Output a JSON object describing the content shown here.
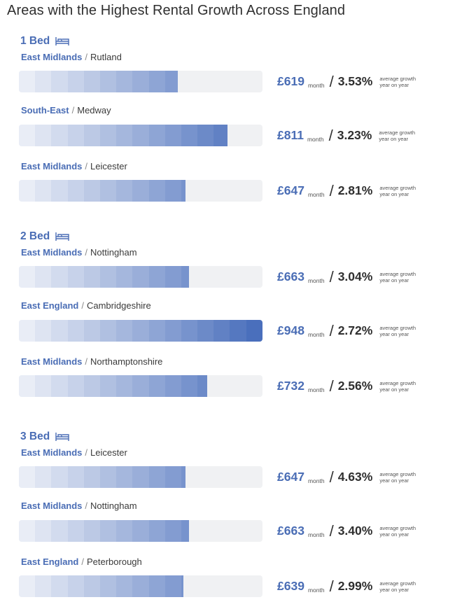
{
  "title": "Areas with the Highest Rental Growth Across England",
  "price_unit": "month",
  "growth_note_line1": "average growth",
  "growth_note_line2": "year on year",
  "colors": {
    "accent": "#4a6db5",
    "track": "#f0f1f3",
    "segment_light": "#e9edf6",
    "segment_dark": "#4a6fbc"
  },
  "chart_data": {
    "type": "bar",
    "title": "Areas with the Highest Rental Growth Across England",
    "xlabel": "",
    "ylabel": "",
    "unit_price": "£ per month",
    "unit_growth": "average growth year on year (%)",
    "groups": [
      {
        "label": "1 Bed",
        "icon": "bed-icon",
        "items": [
          {
            "region": "East Midlands",
            "area": "Rutland",
            "price": 619,
            "price_label": "£619",
            "growth": 3.53,
            "growth_label": "3.53%"
          },
          {
            "region": "South-East",
            "area": "Medway",
            "price": 811,
            "price_label": "£811",
            "growth": 3.23,
            "growth_label": "3.23%"
          },
          {
            "region": "East Midlands",
            "area": "Leicester",
            "price": 647,
            "price_label": "£647",
            "growth": 2.81,
            "growth_label": "2.81%"
          }
        ]
      },
      {
        "label": "2 Bed",
        "icon": "bed-icon",
        "items": [
          {
            "region": "East Midlands",
            "area": "Nottingham",
            "price": 663,
            "price_label": "£663",
            "growth": 3.04,
            "growth_label": "3.04%"
          },
          {
            "region": "East England",
            "area": "Cambridgeshire",
            "price": 948,
            "price_label": "£948",
            "growth": 2.72,
            "growth_label": "2.72%"
          },
          {
            "region": "East Midlands",
            "area": "Northamptonshire",
            "price": 732,
            "price_label": "£732",
            "growth": 2.56,
            "growth_label": "2.56%"
          }
        ]
      },
      {
        "label": "3 Bed",
        "icon": "bed-icon",
        "items": [
          {
            "region": "East Midlands",
            "area": "Leicester",
            "price": 647,
            "price_label": "£647",
            "growth": 4.63,
            "growth_label": "4.63%"
          },
          {
            "region": "East Midlands",
            "area": "Nottingham",
            "price": 663,
            "price_label": "£663",
            "growth": 3.4,
            "growth_label": "3.40%"
          },
          {
            "region": "East England",
            "area": "Peterborough",
            "price": 639,
            "price_label": "£639",
            "growth": 2.99,
            "growth_label": "2.99%"
          }
        ]
      }
    ]
  }
}
